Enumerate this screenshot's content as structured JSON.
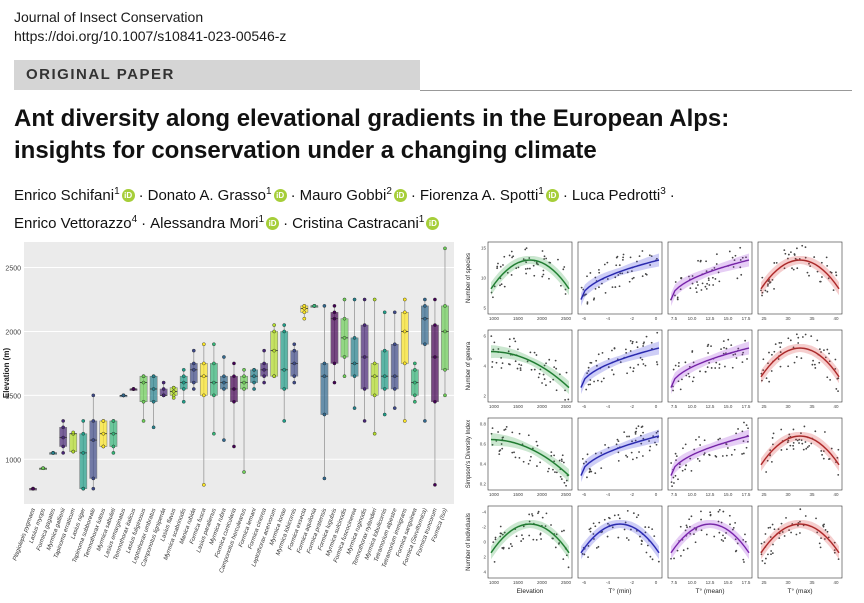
{
  "header": {
    "journal": "Journal of Insect Conservation",
    "doi": "https://doi.org/10.1007/s10841-023-00546-z"
  },
  "banner": {
    "label": "ORIGINAL PAPER"
  },
  "paper": {
    "title_line1": "Ant diversity along elevational gradients in the European Alps:",
    "title_line2": "insights for conservation under a changing climate"
  },
  "authors": [
    {
      "name": "Enrico Schifani",
      "aff": "1",
      "orcid": true
    },
    {
      "name": "Donato A. Grasso",
      "aff": "1",
      "orcid": true
    },
    {
      "name": "Mauro Gobbi",
      "aff": "2",
      "orcid": true
    },
    {
      "name": "Fiorenza A. Spotti",
      "aff": "1",
      "orcid": true
    },
    {
      "name": "Luca Pedrotti",
      "aff": "3",
      "orcid": false
    },
    {
      "name": "Enrico Vettorazzo",
      "aff": "4",
      "orcid": false
    },
    {
      "name": "Alessandra Mori",
      "aff": "1",
      "orcid": true
    },
    {
      "name": "Cristina Castracani",
      "aff": "1",
      "orcid": true
    }
  ],
  "colors": {
    "orcid": "#a6ce39",
    "panel_bg": "#ebebeb",
    "banner_bg": "#d5d5d5"
  },
  "chart_data": [
    {
      "type": "box",
      "ylabel": "Elevation (m)",
      "ylim": [
        650,
        2700
      ],
      "yticks": [
        1000,
        1500,
        2000,
        2500
      ],
      "categories": [
        "Plagiolepis pygmaea",
        "Lasius myops",
        "Formica gagates",
        "Myrmica gallienii",
        "Tapinoma erraticum",
        "Lasius niger",
        "Tapinoma subboreale",
        "Temnothorax luteus",
        "Myrmica sabuleti",
        "Lasius emarginatus",
        "Temnothorax italicus",
        "Lasius fuliginosus",
        "Leptothorax umbratus",
        "Camponotus ligniperda",
        "Lasius flavus",
        "Myrmica scabrinodis",
        "Manica rubida",
        "Formica fusca",
        "Lasius paralienus",
        "Myrmica rubra",
        "Formica cunicularia",
        "Camponotus herculeanus",
        "Formica lemani",
        "Formica cinerea",
        "Leptothorax acervorum",
        "Myrmica lonae",
        "Myrmica lobicornis",
        "Formica exsecta",
        "Formica aquilonia",
        "Formica pratensis",
        "Formica lugubris",
        "Myrmica sulcinodis",
        "Formica fuscocinerea",
        "Myrmica ruginodis",
        "Temnothorax nylanderi",
        "Myrmica lobulicornis",
        "Tetramorium alpestre",
        "Tetramorium immigrans",
        "Formica sanguinea",
        "Formica (Serviformica)",
        "Formica truncorum",
        "Formica (Iso)"
      ],
      "series": [
        {
          "name": "Plagiolepis pygmaea",
          "min": 770,
          "q1": 770,
          "median": 770,
          "q3": 770,
          "max": 770
        },
        {
          "name": "Lasius myops",
          "min": 930,
          "q1": 930,
          "median": 930,
          "q3": 930,
          "max": 930
        },
        {
          "name": "Formica gagates",
          "min": 1050,
          "q1": 1050,
          "median": 1050,
          "q3": 1050,
          "max": 1050
        },
        {
          "name": "Myrmica gallienii",
          "min": 1050,
          "q1": 1100,
          "median": 1170,
          "q3": 1250,
          "max": 1300
        },
        {
          "name": "Tapinoma erraticum",
          "min": 1060,
          "q1": 1060,
          "median": 1200,
          "q3": 1200,
          "max": 1210
        },
        {
          "name": "Lasius niger",
          "min": 770,
          "q1": 770,
          "median": 1050,
          "q3": 1200,
          "max": 1300
        },
        {
          "name": "Tapinoma subboreale",
          "min": 770,
          "q1": 850,
          "median": 1150,
          "q3": 1300,
          "max": 1500
        },
        {
          "name": "Temnothorax luteus",
          "min": 1100,
          "q1": 1100,
          "median": 1200,
          "q3": 1300,
          "max": 1300
        },
        {
          "name": "Myrmica sabuleti",
          "min": 1050,
          "q1": 1100,
          "median": 1200,
          "q3": 1300,
          "max": 1300
        },
        {
          "name": "Lasius emarginatus",
          "min": 1500,
          "q1": 1500,
          "median": 1500,
          "q3": 1500,
          "max": 1500
        },
        {
          "name": "Temnothorax italicus",
          "min": 1550,
          "q1": 1550,
          "median": 1550,
          "q3": 1550,
          "max": 1550
        },
        {
          "name": "Lasius fuliginosus",
          "min": 1300,
          "q1": 1450,
          "median": 1600,
          "q3": 1650,
          "max": 1650
        },
        {
          "name": "Leptothorax umbratus",
          "min": 1250,
          "q1": 1450,
          "median": 1550,
          "q3": 1650,
          "max": 1650
        },
        {
          "name": "Camponotus ligniperda",
          "min": 1500,
          "q1": 1500,
          "median": 1500,
          "q3": 1550,
          "max": 1600
        },
        {
          "name": "Lasius flavus",
          "min": 1480,
          "q1": 1500,
          "median": 1530,
          "q3": 1560,
          "max": 1560
        },
        {
          "name": "Myrmica scabrinodis",
          "min": 1450,
          "q1": 1550,
          "median": 1600,
          "q3": 1650,
          "max": 1700
        },
        {
          "name": "Manica rubida",
          "min": 1550,
          "q1": 1600,
          "median": 1700,
          "q3": 1750,
          "max": 1850
        },
        {
          "name": "Formica fusca",
          "min": 800,
          "q1": 1500,
          "median": 1650,
          "q3": 1750,
          "max": 1900
        },
        {
          "name": "Lasius paralienus",
          "min": 1200,
          "q1": 1500,
          "median": 1600,
          "q3": 1750,
          "max": 1900
        },
        {
          "name": "Myrmica rubra",
          "min": 1150,
          "q1": 1550,
          "median": 1600,
          "q3": 1650,
          "max": 1800
        },
        {
          "name": "Formica cunicularia",
          "min": 1100,
          "q1": 1450,
          "median": 1550,
          "q3": 1650,
          "max": 1750
        },
        {
          "name": "Camponotus herculeanus",
          "min": 900,
          "q1": 1550,
          "median": 1600,
          "q3": 1650,
          "max": 1700
        },
        {
          "name": "Formica lemani",
          "min": 1550,
          "q1": 1600,
          "median": 1650,
          "q3": 1700,
          "max": 1700
        },
        {
          "name": "Formica cinerea",
          "min": 1600,
          "q1": 1650,
          "median": 1700,
          "q3": 1750,
          "max": 1850
        },
        {
          "name": "Leptothorax acervorum",
          "min": 1650,
          "q1": 1650,
          "median": 1850,
          "q3": 2000,
          "max": 2050
        },
        {
          "name": "Myrmica lonae",
          "min": 1300,
          "q1": 1550,
          "median": 1700,
          "q3": 2000,
          "max": 2050
        },
        {
          "name": "Myrmica lobicornis",
          "min": 1600,
          "q1": 1650,
          "median": 1750,
          "q3": 1850,
          "max": 1900
        },
        {
          "name": "Formica exsecta",
          "min": 2100,
          "q1": 2150,
          "median": 2180,
          "q3": 2200,
          "max": 2200
        },
        {
          "name": "Formica aquilonia",
          "min": 2200,
          "q1": 2200,
          "median": 2200,
          "q3": 2200,
          "max": 2200
        },
        {
          "name": "Formica pratensis",
          "min": 850,
          "q1": 1350,
          "median": 1650,
          "q3": 1750,
          "max": 2200
        },
        {
          "name": "Formica lugubris",
          "min": 1600,
          "q1": 1750,
          "median": 2100,
          "q3": 2150,
          "max": 2200
        },
        {
          "name": "Myrmica sulcinodis",
          "min": 1650,
          "q1": 1800,
          "median": 1950,
          "q3": 2100,
          "max": 2250
        },
        {
          "name": "Formica fuscocinerea",
          "min": 1400,
          "q1": 1650,
          "median": 1750,
          "q3": 1950,
          "max": 2250
        },
        {
          "name": "Myrmica ruginodis",
          "min": 1300,
          "q1": 1550,
          "median": 1800,
          "q3": 2050,
          "max": 2250
        },
        {
          "name": "Temnothorax nylanderi",
          "min": 1200,
          "q1": 1500,
          "median": 1650,
          "q3": 1750,
          "max": 2250
        },
        {
          "name": "Myrmica lobulicornis",
          "min": 1350,
          "q1": 1550,
          "median": 1650,
          "q3": 1850,
          "max": 2150
        },
        {
          "name": "Tetramorium alpestre",
          "min": 1400,
          "q1": 1550,
          "median": 1650,
          "q3": 1900,
          "max": 2150
        },
        {
          "name": "Tetramorium immigrans",
          "min": 1300,
          "q1": 1750,
          "median": 2000,
          "q3": 2150,
          "max": 2250
        },
        {
          "name": "Formica sanguinea",
          "min": 1450,
          "q1": 1500,
          "median": 1600,
          "q3": 1700,
          "max": 1750
        },
        {
          "name": "Formica (Serviformica)",
          "min": 1300,
          "q1": 1900,
          "median": 2100,
          "q3": 2200,
          "max": 2250
        },
        {
          "name": "Formica truncorum",
          "min": 800,
          "q1": 1450,
          "median": 1800,
          "q3": 2050,
          "max": 2250
        },
        {
          "name": "Formica (Iso)",
          "min": 1500,
          "q1": 1700,
          "median": 2000,
          "q3": 2200,
          "max": 2650
        }
      ]
    },
    {
      "type": "scatter",
      "grid_rows": [
        "Number of species",
        "Number of genera",
        "Simpson's Diversity Index",
        "Number of individuals"
      ],
      "grid_cols": [
        "Elevation",
        "T° (min)",
        "T° (mean)",
        "T° (max)"
      ],
      "col_ticks": [
        [
          "1000",
          "1500",
          "2000",
          "2500"
        ],
        [
          "-6",
          "-4",
          "-2",
          "0"
        ],
        [
          "7.5",
          "10.0",
          "12.5",
          "15.0",
          "17.5"
        ],
        [
          "25",
          "30",
          "35",
          "40"
        ]
      ],
      "row_ticks": [
        [
          "5",
          "10",
          "15"
        ],
        [
          "2",
          "4",
          "6"
        ],
        [
          "0.2",
          "0.4",
          "0.6",
          "0.8"
        ],
        [
          "4",
          "2",
          "0",
          "-2",
          "-4"
        ]
      ],
      "col_colors": [
        "#2f9e44",
        "#3b3bdc",
        "#9b3bd6",
        "#d63c3c"
      ],
      "trend": [
        [
          "hump",
          "rise",
          "rise",
          "hump"
        ],
        [
          "fall",
          "rise",
          "rise",
          "hump"
        ],
        [
          "fall",
          "rise",
          "rise",
          "hump"
        ],
        [
          "hump",
          "hump",
          "hump",
          "hump"
        ]
      ]
    }
  ]
}
